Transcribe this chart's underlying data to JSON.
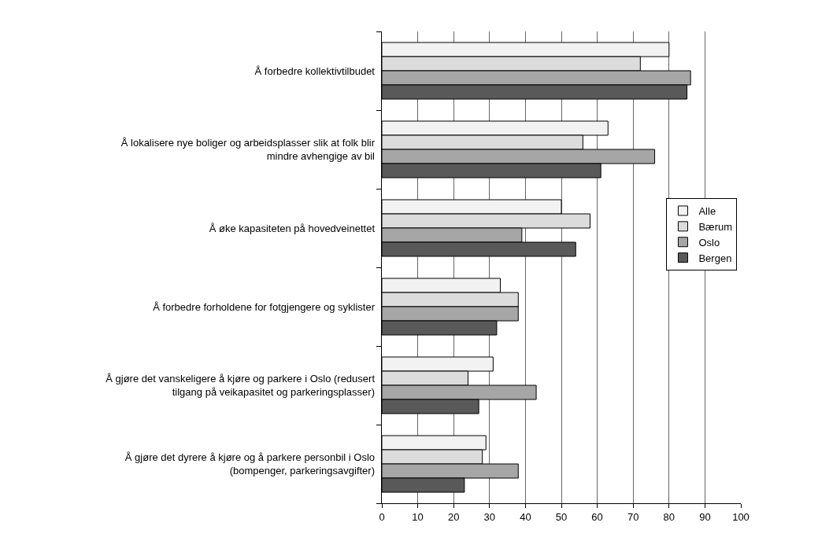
{
  "chart_data": {
    "type": "bar",
    "orientation": "horizontal",
    "categories": [
      "Å forbedre kollektivtilbudet",
      "Å lokalisere nye boliger og arbeidsplasser slik at folk blir mindre avhengige av bil",
      "Å øke kapasiteten på hovedveinettet",
      "Å forbedre forholdene for fotgjengere og syklister",
      "Å gjøre det vanskeligere å kjøre og parkere i Oslo (redusert tilgang på veikapasitet og parkeringsplasser)",
      "Å gjøre det dyrere å kjøre og å parkere personbil i Oslo (bompenger, parkeringsavgifter)"
    ],
    "series": [
      {
        "name": "Alle",
        "color": "#f2f2f2",
        "values": [
          80,
          63,
          50,
          33,
          31,
          29
        ]
      },
      {
        "name": "Bærum",
        "color": "#dcdcdc",
        "values": [
          72,
          56,
          58,
          38,
          24,
          28
        ]
      },
      {
        "name": "Oslo",
        "color": "#a6a6a6",
        "values": [
          86,
          76,
          39,
          38,
          43,
          38
        ]
      },
      {
        "name": "Bergen",
        "color": "#595959",
        "values": [
          85,
          61,
          54,
          32,
          27,
          23
        ]
      }
    ],
    "xlim": [
      0,
      100
    ],
    "xticks": [
      0,
      10,
      20,
      30,
      40,
      50,
      60,
      70,
      80,
      90,
      100
    ],
    "grid": "x",
    "legend": "right"
  }
}
